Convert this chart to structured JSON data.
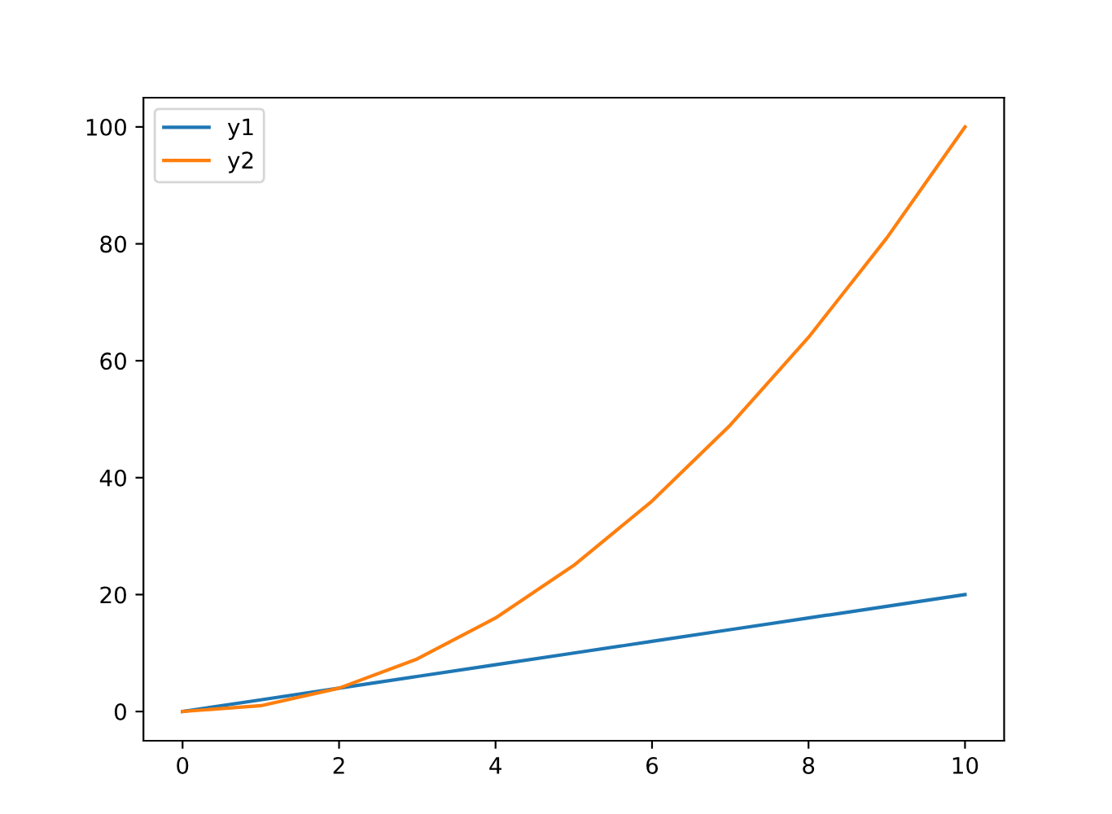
{
  "chart_data": {
    "type": "line",
    "x": [
      0,
      1,
      2,
      3,
      4,
      5,
      6,
      7,
      8,
      9,
      10
    ],
    "series": [
      {
        "name": "y1",
        "color": "#1f77b4",
        "values": [
          0,
          2,
          4,
          6,
          8,
          10,
          12,
          14,
          16,
          18,
          20
        ]
      },
      {
        "name": "y2",
        "color": "#ff7f0e",
        "values": [
          0,
          1,
          4,
          9,
          16,
          25,
          36,
          49,
          64,
          81,
          100
        ]
      }
    ],
    "xlim": [
      -0.5,
      10.5
    ],
    "xticks": [
      0,
      2,
      4,
      6,
      8,
      10
    ],
    "ylim": [
      -5,
      105
    ],
    "yticks": [
      0,
      20,
      40,
      60,
      80,
      100
    ],
    "grid": false,
    "legend": "top left",
    "marker": "none",
    "line_style": "solid"
  }
}
